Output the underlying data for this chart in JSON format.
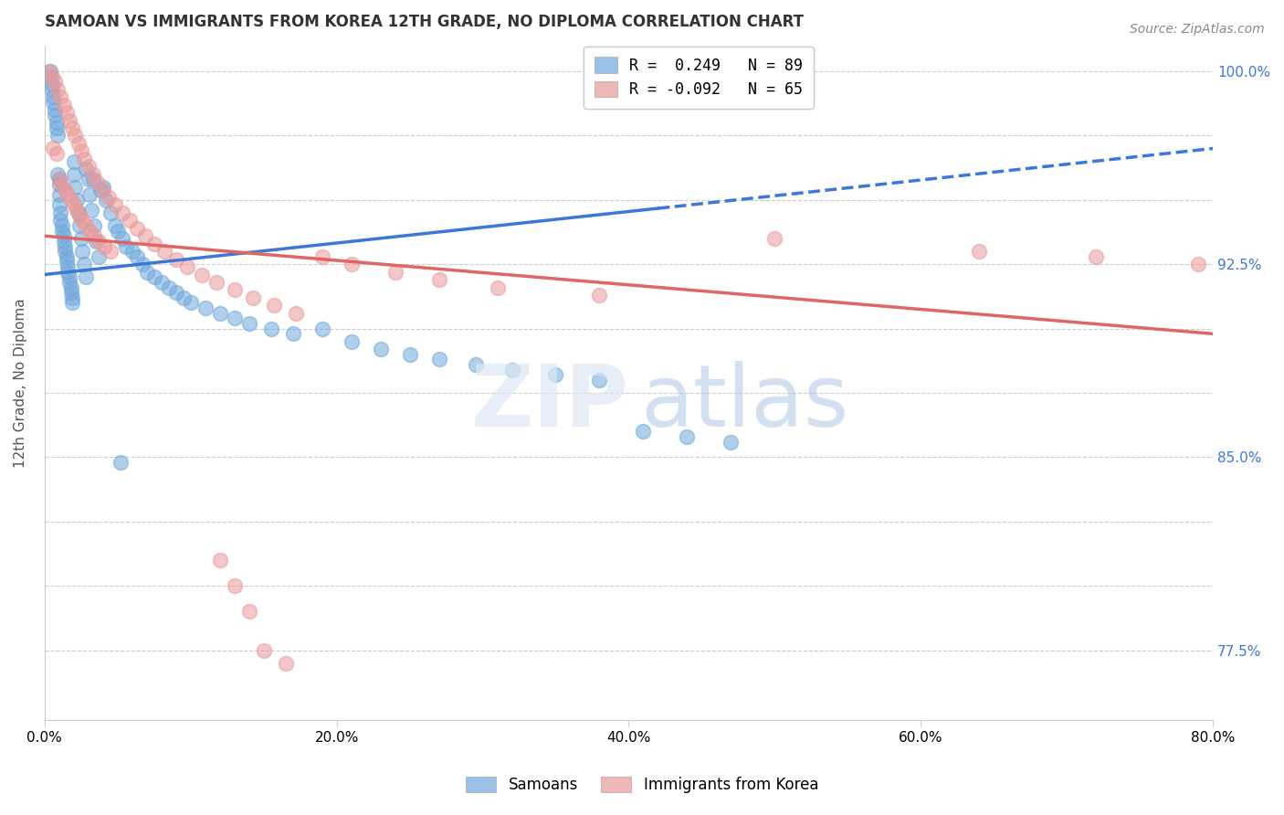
{
  "title": "SAMOAN VS IMMIGRANTS FROM KOREA 12TH GRADE, NO DIPLOMA CORRELATION CHART",
  "source": "Source: ZipAtlas.com",
  "ylabel_label": "12th Grade, No Diploma",
  "legend_entries": [
    {
      "label": "R =  0.249   N = 89",
      "color": "#6fa8dc"
    },
    {
      "label": "R = -0.092   N = 65",
      "color": "#ea9999"
    }
  ],
  "legend_labels": [
    "Samoans",
    "Immigrants from Korea"
  ],
  "xlim": [
    0.0,
    0.8
  ],
  "ylim": [
    0.748,
    1.01
  ],
  "yticks": [
    0.775,
    0.8,
    0.825,
    0.85,
    0.875,
    0.9,
    0.925,
    0.95,
    0.975,
    1.0
  ],
  "ytick_right_labels": [
    "77.5%",
    "",
    "",
    "85.0%",
    "",
    "",
    "92.5%",
    "",
    "",
    "100.0%"
  ],
  "xticks": [
    0.0,
    0.2,
    0.4,
    0.6,
    0.8
  ],
  "xtick_labels": [
    "0.0%",
    "20.0%",
    "40.0%",
    "60.0%",
    "80.0%"
  ],
  "blue_color": "#6fa8dc",
  "pink_color": "#ea9999",
  "blue_line_color": "#3c78d8",
  "pink_line_color": "#e06666",
  "blue_line_solid_end": 0.42,
  "blue_line_x0": 0.0,
  "blue_line_x1": 0.8,
  "blue_line_y0": 0.921,
  "blue_line_y1": 0.97,
  "pink_line_x0": 0.0,
  "pink_line_x1": 0.8,
  "pink_line_y0": 0.936,
  "pink_line_y1": 0.898,
  "samoans_x": [
    0.003,
    0.004,
    0.005,
    0.005,
    0.006,
    0.006,
    0.007,
    0.007,
    0.008,
    0.008,
    0.009,
    0.009,
    0.01,
    0.01,
    0.01,
    0.01,
    0.011,
    0.011,
    0.012,
    0.012,
    0.013,
    0.013,
    0.014,
    0.014,
    0.015,
    0.015,
    0.016,
    0.016,
    0.017,
    0.017,
    0.018,
    0.018,
    0.019,
    0.019,
    0.02,
    0.02,
    0.021,
    0.022,
    0.023,
    0.024,
    0.025,
    0.026,
    0.027,
    0.028,
    0.03,
    0.031,
    0.032,
    0.034,
    0.035,
    0.037,
    0.04,
    0.042,
    0.045,
    0.048,
    0.05,
    0.053,
    0.056,
    0.06,
    0.063,
    0.067,
    0.07,
    0.075,
    0.08,
    0.085,
    0.09,
    0.095,
    0.1,
    0.11,
    0.12,
    0.13,
    0.14,
    0.155,
    0.17,
    0.19,
    0.21,
    0.23,
    0.25,
    0.27,
    0.295,
    0.32,
    0.35,
    0.38,
    0.41,
    0.44,
    0.47,
    0.028,
    0.033,
    0.038,
    0.052
  ],
  "samoans_y": [
    0.998,
    1.0,
    0.995,
    0.993,
    0.99,
    0.988,
    0.985,
    0.983,
    0.98,
    0.978,
    0.975,
    0.96,
    0.958,
    0.956,
    0.952,
    0.948,
    0.945,
    0.942,
    0.94,
    0.938,
    0.936,
    0.934,
    0.932,
    0.93,
    0.928,
    0.926,
    0.924,
    0.922,
    0.92,
    0.918,
    0.916,
    0.914,
    0.912,
    0.91,
    0.965,
    0.96,
    0.955,
    0.95,
    0.945,
    0.94,
    0.935,
    0.93,
    0.925,
    0.92,
    0.958,
    0.952,
    0.946,
    0.94,
    0.934,
    0.928,
    0.955,
    0.95,
    0.945,
    0.94,
    0.938,
    0.935,
    0.932,
    0.93,
    0.928,
    0.925,
    0.922,
    0.92,
    0.918,
    0.916,
    0.914,
    0.912,
    0.91,
    0.908,
    0.906,
    0.904,
    0.902,
    0.9,
    0.898,
    0.9,
    0.895,
    0.892,
    0.89,
    0.888,
    0.886,
    0.884,
    0.882,
    0.88,
    0.86,
    0.858,
    0.856,
    0.962,
    0.958,
    0.954,
    0.848
  ],
  "korea_x": [
    0.003,
    0.005,
    0.007,
    0.009,
    0.011,
    0.013,
    0.015,
    0.017,
    0.019,
    0.021,
    0.023,
    0.025,
    0.027,
    0.03,
    0.033,
    0.036,
    0.04,
    0.044,
    0.048,
    0.053,
    0.058,
    0.063,
    0.069,
    0.075,
    0.082,
    0.09,
    0.098,
    0.108,
    0.118,
    0.13,
    0.143,
    0.157,
    0.172,
    0.01,
    0.012,
    0.014,
    0.016,
    0.018,
    0.02,
    0.022,
    0.024,
    0.026,
    0.028,
    0.031,
    0.034,
    0.037,
    0.041,
    0.045,
    0.006,
    0.008,
    0.19,
    0.21,
    0.24,
    0.27,
    0.31,
    0.38,
    0.5,
    0.64,
    0.72,
    0.79,
    0.15,
    0.165,
    0.14,
    0.13,
    0.12
  ],
  "korea_y": [
    1.0,
    0.998,
    0.996,
    0.993,
    0.99,
    0.987,
    0.984,
    0.981,
    0.978,
    0.975,
    0.972,
    0.969,
    0.966,
    0.963,
    0.96,
    0.957,
    0.954,
    0.951,
    0.948,
    0.945,
    0.942,
    0.939,
    0.936,
    0.933,
    0.93,
    0.927,
    0.924,
    0.921,
    0.918,
    0.915,
    0.912,
    0.909,
    0.906,
    0.958,
    0.956,
    0.954,
    0.952,
    0.95,
    0.948,
    0.946,
    0.944,
    0.942,
    0.94,
    0.938,
    0.936,
    0.934,
    0.932,
    0.93,
    0.97,
    0.968,
    0.928,
    0.925,
    0.922,
    0.919,
    0.916,
    0.913,
    0.935,
    0.93,
    0.928,
    0.925,
    0.775,
    0.77,
    0.79,
    0.8,
    0.81
  ]
}
